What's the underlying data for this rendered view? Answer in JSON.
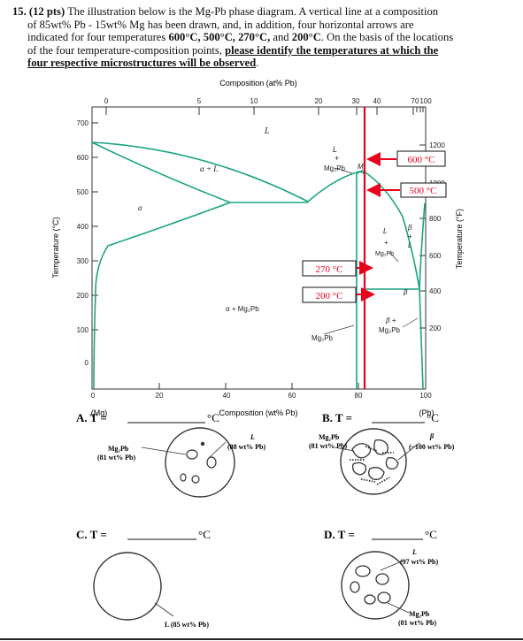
{
  "question": {
    "number": "15.",
    "points": "(12 pts)",
    "line1_rest": "The illustration below is the Mg-Pb phase diagram. A vertical line at a composition",
    "line2": "of 85wt% Pb - 15wt% Mg has been drawn, and, in addition, four horizontal arrows are",
    "line3_pre": "indicated for four temperatures ",
    "temps_bold": "600°C, 500°C, 270°C, ",
    "line3_and": "and ",
    "temp_200": "200°C",
    "line3_post": ". On the basis of the locations",
    "line4_pre": "of the four temperature-composition points, ",
    "line4_underlined": "please identify the temperatures at which the",
    "line5_underlined": "four respective microstructures will be observed",
    "line5_end": "."
  },
  "diagram": {
    "top_axis_title": "Composition (at% Pb)",
    "top_ticks": [
      "0",
      "5",
      "10",
      "20",
      "30",
      "40",
      "70",
      "100"
    ],
    "bottom_ticks": [
      "0",
      "20",
      "40",
      "60",
      "80",
      "100"
    ],
    "bottom_axis_title": "Composition (wt% Pb)",
    "mg_label": "(Mg)",
    "pb_label": "(Pb)",
    "left_axis_title": "Temperature (°C)",
    "left_ticks": [
      "700",
      "600",
      "500",
      "400",
      "300",
      "200",
      "100",
      "0"
    ],
    "right_axis_title": "Temperature (°F)",
    "right_ticks": [
      "1200",
      "1000",
      "800",
      "600",
      "400",
      "200"
    ],
    "regions": {
      "L": "L",
      "a_plus_L": "α + L",
      "alpha": "α",
      "L_plus_Mg2Pb_top": "L",
      "L_plus_Mg2Pb_plus": "+",
      "L_plus_Mg2Pb_bottom": "Mg₂Pb",
      "M": "M",
      "a_plus_Mg2Pb": "α + Mg₂Pb",
      "Mg2Pb": "Mg₂Pb",
      "right_L": "L",
      "right_plus": "+",
      "right_Mg2Pb": "Mg₂Pb",
      "beta_L_beta": "β",
      "beta_L_plus": "+",
      "beta_L_L": "L",
      "beta": "β",
      "beta_Mg2Pb_beta": "β +",
      "beta_Mg2Pb_bottom": "Mg₂Pb"
    },
    "temp_boxes": [
      "600 °C",
      "500 °C",
      "270 °C",
      "200 °C"
    ],
    "line_color": "#e8001c",
    "curve_color": "#1ba384",
    "alt_mark": "M"
  },
  "answers": {
    "A_label": "A. T =",
    "A_unit": "°C",
    "A_left_label_1": "Mg₂Pb",
    "A_left_label_2": "(81 wt% Pb)",
    "A_right_label_1": "L",
    "A_right_label_2": "(88 wt% Pb)",
    "B_label": "B. T =",
    "B_unit": "°C",
    "B_left_label_1": "Mg₂Pb",
    "B_left_label_2": "(81 wt% Pb)",
    "B_right_label_1": "β",
    "B_right_label_2": "(~100 wt% Pb)",
    "C_label": "C. T =",
    "C_unit": "°C",
    "C_label_1": "L (85 wt% Pb)",
    "D_label": "D. T =",
    "D_unit": "°C",
    "D_top_label_1": "L",
    "D_top_label_2": "(97 wt% Pb)",
    "D_bottom_label_1": "Mg₂Pb",
    "D_bottom_label_2": "(81 wt% Pb)"
  }
}
